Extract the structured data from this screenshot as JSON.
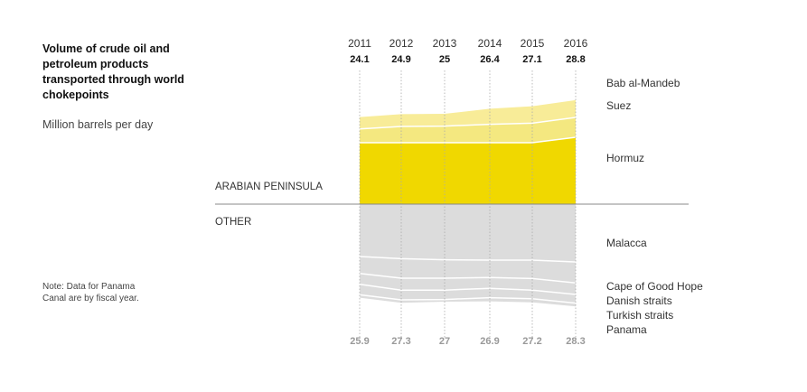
{
  "title": "Volume of crude oil and petroleum products transported through world chokepoints",
  "subtitle": "Million barrels per day",
  "note": "Note: Data for Panama Canal are by fiscal year.",
  "chart_data": {
    "type": "area",
    "title": "Volume of crude oil and petroleum products transported through world chokepoints",
    "ylabel": "Million barrels per day",
    "x": [
      "2011",
      "2012",
      "2013",
      "2014",
      "2015",
      "2016"
    ],
    "regions": [
      {
        "name": "ARABIAN PENINSULA",
        "totals": [
          "24.1",
          "24.9",
          "25",
          "26.4",
          "27.1",
          "28.8"
        ],
        "series": [
          {
            "name": "Hormuz",
            "values": [
              17.0,
              17.0,
              17.0,
              17.0,
              17.0,
              18.5
            ]
          },
          {
            "name": "Suez",
            "values": [
              3.8,
              4.5,
              4.6,
              5.1,
              5.4,
              5.5
            ]
          },
          {
            "name": "Bab al-Mandeb",
            "values": [
              3.3,
              3.4,
              3.4,
              4.3,
              4.7,
              4.8
            ]
          }
        ]
      },
      {
        "name": "OTHER",
        "totals": [
          "25.9",
          "27.3",
          "27",
          "26.9",
          "27.2",
          "28.3"
        ],
        "series": [
          {
            "name": "Malacca",
            "values": [
              14.5,
              15.1,
              15.4,
              15.5,
              15.5,
              16.0
            ]
          },
          {
            "name": "Cape of Good Hope",
            "values": [
              4.7,
              5.4,
              5.1,
              4.8,
              5.1,
              5.8
            ]
          },
          {
            "name": "Danish straits",
            "values": [
              3.0,
              3.3,
              3.3,
              3.0,
              3.2,
              3.2
            ]
          },
          {
            "name": "Turkish straits",
            "values": [
              2.9,
              2.7,
              2.6,
              2.6,
              2.4,
              2.4
            ]
          },
          {
            "name": "Panama",
            "values": [
              0.8,
              0.8,
              0.6,
              1.0,
              1.0,
              0.9
            ]
          }
        ]
      }
    ],
    "colors": {
      "hormuz": "#f0d800",
      "suez": "#f4e880",
      "bab_al_mandeb": "#f8ec98",
      "other_fill": "#dcdcdc",
      "separator": "#ffffff",
      "axis": "#888888",
      "gridline": "#aaaaaa",
      "bottom_totals": "#999999"
    }
  }
}
